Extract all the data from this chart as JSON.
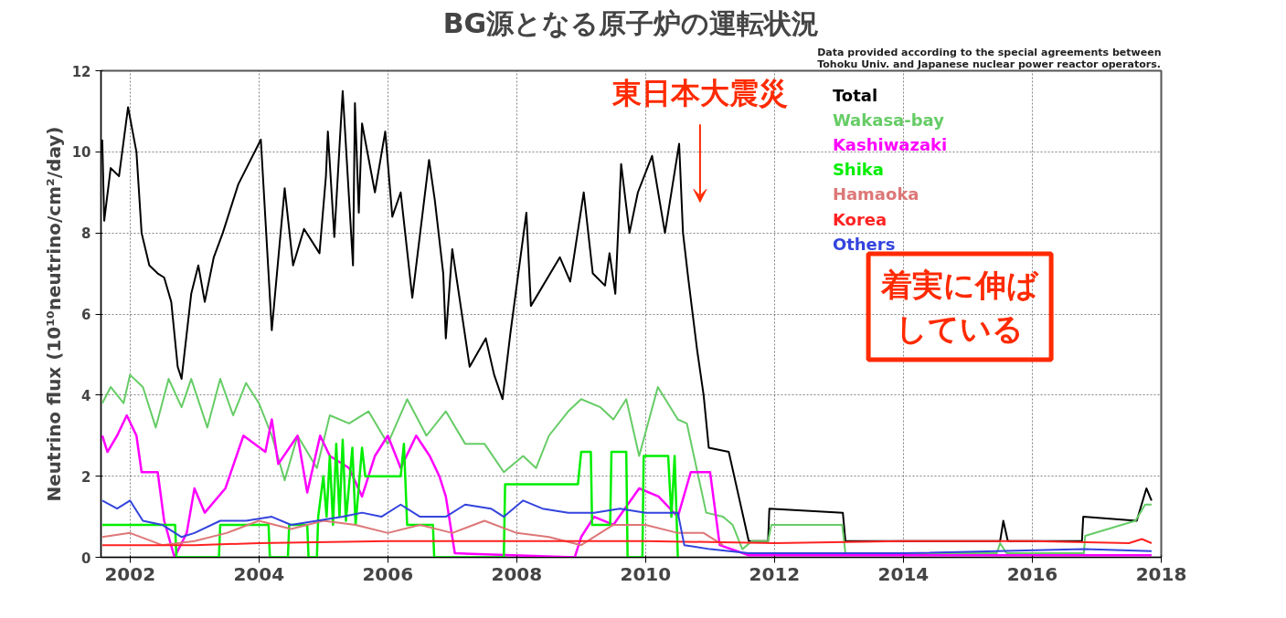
{
  "chart_data": {
    "type": "line",
    "title": "BG源となる原子炉の運転状況",
    "ylabel": "Neutrino flux (10¹⁰neutrino/cm²/day)",
    "xlim": [
      2001.55,
      2018.0
    ],
    "xticks": [
      2002,
      2004,
      2006,
      2008,
      2010,
      2012,
      2014,
      2016,
      2018
    ],
    "ylim": [
      0,
      12
    ],
    "yticks": [
      0,
      2,
      4,
      6,
      8,
      10,
      12
    ],
    "grid": true,
    "legend": "top right",
    "annotations": [
      "Data provided according to the special agreements between\nTohoku Univ. and Japanese nuclear power reactor operators.",
      "東日本大震災",
      "着実に伸ばしている"
    ],
    "series": [
      {
        "name": "Total",
        "color": "#000000",
        "x": [
          2001.57,
          2001.6,
          2001.7,
          2001.83,
          2001.97,
          2002.1,
          2002.18,
          2002.3,
          2002.43,
          2002.53,
          2002.64,
          2002.74,
          2002.8,
          2002.95,
          2003.06,
          2003.16,
          2003.3,
          2003.44,
          2003.68,
          2004.03,
          2004.2,
          2004.4,
          2004.53,
          2004.7,
          2004.94,
          2005.04,
          2005.07,
          2005.17,
          2005.3,
          2005.46,
          2005.49,
          2005.55,
          2005.6,
          2005.8,
          2005.96,
          2006.07,
          2006.2,
          2006.38,
          2006.64,
          2006.73,
          2006.86,
          2006.9,
          2007.0,
          2007.27,
          2007.52,
          2007.65,
          2007.78,
          2007.9,
          2008.15,
          2008.22,
          2008.67,
          2008.83,
          2009.04,
          2009.18,
          2009.37,
          2009.44,
          2009.53,
          2009.62,
          2009.75,
          2009.88,
          2010.1,
          2010.3,
          2010.52,
          2010.58,
          2010.66,
          2010.8,
          2010.9,
          2010.98,
          2011.29,
          2011.6,
          2011.9,
          2011.92,
          2013.06,
          2013.1,
          2015.5,
          2015.55,
          2015.62,
          2016.77,
          2016.79,
          2017.62,
          2017.77,
          2017.85
        ],
        "values": [
          10.3,
          8.3,
          9.6,
          9.4,
          11.1,
          10.0,
          8.0,
          7.2,
          7.0,
          6.9,
          6.3,
          4.7,
          4.4,
          6.5,
          7.2,
          6.3,
          7.4,
          8.0,
          9.2,
          10.3,
          5.6,
          9.1,
          7.2,
          8.1,
          7.5,
          9.4,
          10.5,
          7.9,
          11.5,
          7.2,
          11.2,
          8.5,
          10.7,
          9.0,
          10.5,
          8.4,
          9.0,
          6.4,
          9.8,
          8.8,
          7.0,
          5.4,
          7.6,
          4.7,
          5.4,
          4.5,
          3.9,
          5.5,
          8.5,
          6.2,
          7.4,
          6.8,
          9.0,
          7.0,
          6.7,
          7.5,
          6.5,
          9.7,
          8.0,
          9.0,
          9.9,
          8.0,
          10.2,
          8.0,
          6.9,
          5.1,
          4.0,
          2.7,
          2.6,
          0.4,
          0.4,
          1.2,
          1.1,
          0.4,
          0.4,
          0.9,
          0.4,
          0.4,
          1.0,
          0.9,
          1.7,
          1.4
        ]
      },
      {
        "name": "Wakasa-bay",
        "color": "#66cc66",
        "x": [
          2001.57,
          2001.7,
          2001.9,
          2002.0,
          2002.2,
          2002.4,
          2002.6,
          2002.8,
          2002.95,
          2003.2,
          2003.4,
          2003.6,
          2003.8,
          2004.0,
          2004.2,
          2004.4,
          2004.6,
          2004.9,
          2005.1,
          2005.4,
          2005.7,
          2006.0,
          2006.3,
          2006.6,
          2006.9,
          2007.2,
          2007.5,
          2007.8,
          2008.1,
          2008.3,
          2008.5,
          2008.8,
          2009.0,
          2009.3,
          2009.5,
          2009.7,
          2009.9,
          2010.19,
          2010.5,
          2010.64,
          2010.94,
          2011.2,
          2011.35,
          2011.5,
          2011.65,
          2011.9,
          2011.95,
          2013.05,
          2013.1,
          2015.45,
          2015.5,
          2015.6,
          2016.8,
          2016.82,
          2017.6,
          2017.75,
          2017.85
        ],
        "values": [
          3.8,
          4.2,
          3.8,
          4.5,
          4.2,
          3.2,
          4.4,
          3.7,
          4.4,
          3.2,
          4.4,
          3.5,
          4.3,
          3.8,
          3.0,
          1.9,
          3.0,
          2.2,
          3.5,
          3.3,
          3.6,
          2.8,
          3.9,
          3.0,
          3.6,
          2.8,
          2.8,
          2.1,
          2.5,
          2.2,
          3.0,
          3.6,
          3.9,
          3.7,
          3.4,
          3.9,
          2.5,
          4.2,
          3.4,
          3.3,
          1.1,
          1.0,
          0.8,
          0.2,
          0.4,
          0.4,
          0.8,
          0.8,
          0.1,
          0.1,
          0.35,
          0.1,
          0.1,
          0.53,
          0.9,
          1.3,
          1.3
        ]
      },
      {
        "name": "Kashiwazaki",
        "color": "#ff00ff",
        "x": [
          2001.57,
          2001.65,
          2001.8,
          2001.95,
          2002.1,
          2002.18,
          2002.43,
          2002.53,
          2002.69,
          2002.88,
          2003.0,
          2003.16,
          2003.48,
          2003.76,
          2004.1,
          2004.2,
          2004.3,
          2004.6,
          2004.75,
          2004.95,
          2005.1,
          2005.4,
          2005.6,
          2005.8,
          2006.0,
          2006.2,
          2006.44,
          2006.65,
          2006.8,
          2006.9,
          2007.04,
          2008.9,
          2009.0,
          2009.2,
          2009.5,
          2009.9,
          2010.2,
          2010.5,
          2010.7,
          2011.0,
          2011.15,
          2011.6,
          2017.85
        ],
        "values": [
          3.0,
          2.6,
          3.0,
          3.5,
          3.0,
          2.1,
          2.1,
          0.9,
          0.0,
          0.6,
          1.7,
          1.1,
          1.7,
          3.0,
          2.6,
          3.4,
          2.3,
          3.0,
          1.6,
          3.0,
          2.5,
          2.2,
          1.5,
          2.5,
          3.0,
          2.2,
          3.0,
          2.5,
          2.0,
          1.5,
          0.1,
          0.0,
          0.5,
          1.0,
          0.8,
          1.7,
          1.5,
          1.0,
          2.1,
          2.1,
          0.3,
          0.05,
          0.05
        ]
      },
      {
        "name": "Shika",
        "color": "#00ee00",
        "x": [
          2001.57,
          2002.7,
          2002.72,
          2003.38,
          2003.4,
          2004.15,
          2004.17,
          2004.45,
          2004.47,
          2004.75,
          2004.77,
          2004.9,
          2004.92,
          2005.0,
          2005.05,
          2005.1,
          2005.15,
          2005.2,
          2005.25,
          2005.3,
          2005.35,
          2005.45,
          2005.5,
          2005.6,
          2005.65,
          2006.2,
          2006.25,
          2006.3,
          2006.7,
          2006.72,
          2007.8,
          2007.82,
          2008.95,
          2009.0,
          2009.15,
          2009.17,
          2009.45,
          2009.47,
          2009.7,
          2009.72,
          2009.95,
          2009.97,
          2010.35,
          2010.4,
          2010.45,
          2010.5
        ],
        "values": [
          0.8,
          0.8,
          0,
          0,
          0.8,
          0.8,
          0,
          0,
          0.8,
          0.8,
          0,
          0,
          1.0,
          2.0,
          1.0,
          2.5,
          0.8,
          2.8,
          1.0,
          2.9,
          0.9,
          2.7,
          0.8,
          2.7,
          2.0,
          2.0,
          2.8,
          0.8,
          0.8,
          0,
          0,
          1.8,
          1.8,
          2.6,
          2.6,
          0.8,
          0.8,
          2.6,
          2.6,
          0,
          0,
          2.5,
          2.5,
          1.0,
          2.5,
          0
        ]
      },
      {
        "name": "Hamaoka",
        "color": "#dd7777",
        "x": [
          2001.57,
          2002.0,
          2002.5,
          2003.0,
          2003.5,
          2004.0,
          2004.5,
          2005.0,
          2005.5,
          2006.0,
          2006.5,
          2007.0,
          2007.5,
          2008.0,
          2008.5,
          2009.0,
          2009.5,
          2010.0,
          2010.5,
          2010.9,
          2011.2
        ],
        "values": [
          0.5,
          0.6,
          0.3,
          0.4,
          0.6,
          0.9,
          0.7,
          0.9,
          0.8,
          0.6,
          0.8,
          0.6,
          0.9,
          0.6,
          0.5,
          0.3,
          0.8,
          0.8,
          0.6,
          0.6,
          0.3
        ]
      },
      {
        "name": "Korea",
        "color": "#ff2222",
        "x": [
          2001.57,
          2003,
          2004,
          2006,
          2008,
          2010,
          2012,
          2014,
          2016,
          2017.5,
          2017.7,
          2017.85
        ],
        "values": [
          0.3,
          0.3,
          0.35,
          0.4,
          0.4,
          0.4,
          0.35,
          0.4,
          0.4,
          0.35,
          0.45,
          0.35
        ]
      },
      {
        "name": "Others",
        "color": "#3344dd",
        "x": [
          2001.57,
          2001.8,
          2002.0,
          2002.2,
          2002.5,
          2002.8,
          2003.0,
          2003.4,
          2003.8,
          2004.2,
          2004.5,
          2004.9,
          2005.3,
          2005.6,
          2005.9,
          2006.2,
          2006.5,
          2006.9,
          2007.2,
          2007.6,
          2007.8,
          2008.1,
          2008.4,
          2008.8,
          2009.2,
          2009.6,
          2010.0,
          2010.5,
          2010.6,
          2011.0,
          2011.6,
          2014,
          2016.8,
          2017.85
        ],
        "values": [
          1.4,
          1.2,
          1.4,
          0.9,
          0.8,
          0.5,
          0.6,
          0.9,
          0.9,
          1.0,
          0.8,
          0.9,
          1.0,
          1.1,
          1.0,
          1.3,
          1.0,
          1.0,
          1.3,
          1.2,
          1.0,
          1.4,
          1.2,
          1.1,
          1.1,
          1.2,
          1.1,
          1.1,
          0.3,
          0.2,
          0.1,
          0.1,
          0.2,
          0.15
        ]
      }
    ]
  }
}
